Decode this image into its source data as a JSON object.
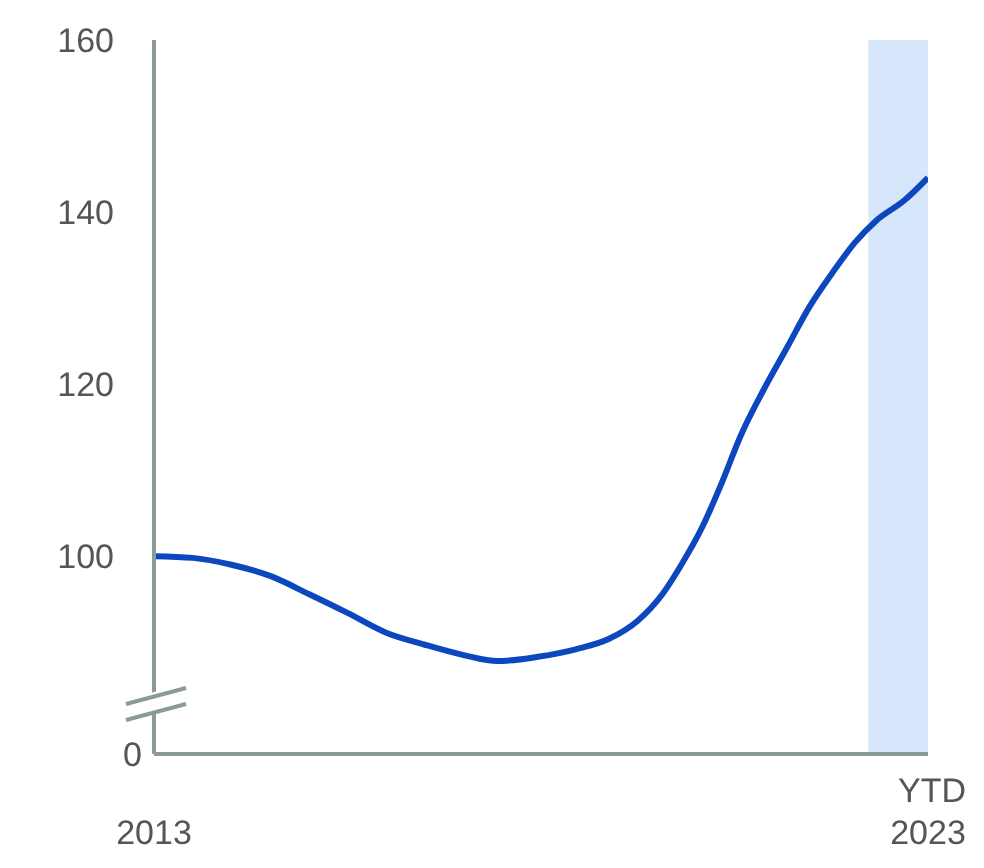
{
  "chart_data": {
    "type": "line",
    "x": [
      2013,
      2013.5,
      2014,
      2014.5,
      2015,
      2015.5,
      2016,
      2016.5,
      2017,
      2017.44,
      2017.96,
      2018.46,
      2018.88,
      2019.25,
      2019.57,
      2019.8,
      2020.09,
      2020.33,
      2020.58,
      2020.88,
      2021.17,
      2021.47,
      2021.77,
      2022.06,
      2022.33,
      2022.7,
      2023
    ],
    "series": [
      {
        "color": "#0d47c0",
        "values": [
          100,
          99.8,
          99,
          97.7,
          95.6,
          93.4,
          91.1,
          89.7,
          88.5,
          87.8,
          88.3,
          89.2,
          90.4,
          92.5,
          95.6,
          98.8,
          103.5,
          108.4,
          114,
          119.4,
          124.1,
          129,
          133,
          136.5,
          139,
          141.4,
          144
        ]
      }
    ],
    "xlim": [
      2013,
      2023
    ],
    "xticks": [
      2013,
      2023
    ],
    "ylim": [
      77,
      160
    ],
    "yticks": [
      100,
      120,
      140,
      160
    ],
    "bands": [
      {
        "axis": "x",
        "from": 2022.23,
        "to": 2023,
        "color": "#d6e6fb"
      }
    ],
    "annotations": [
      "0",
      "YTD"
    ],
    "grid": false,
    "legend": false
  }
}
